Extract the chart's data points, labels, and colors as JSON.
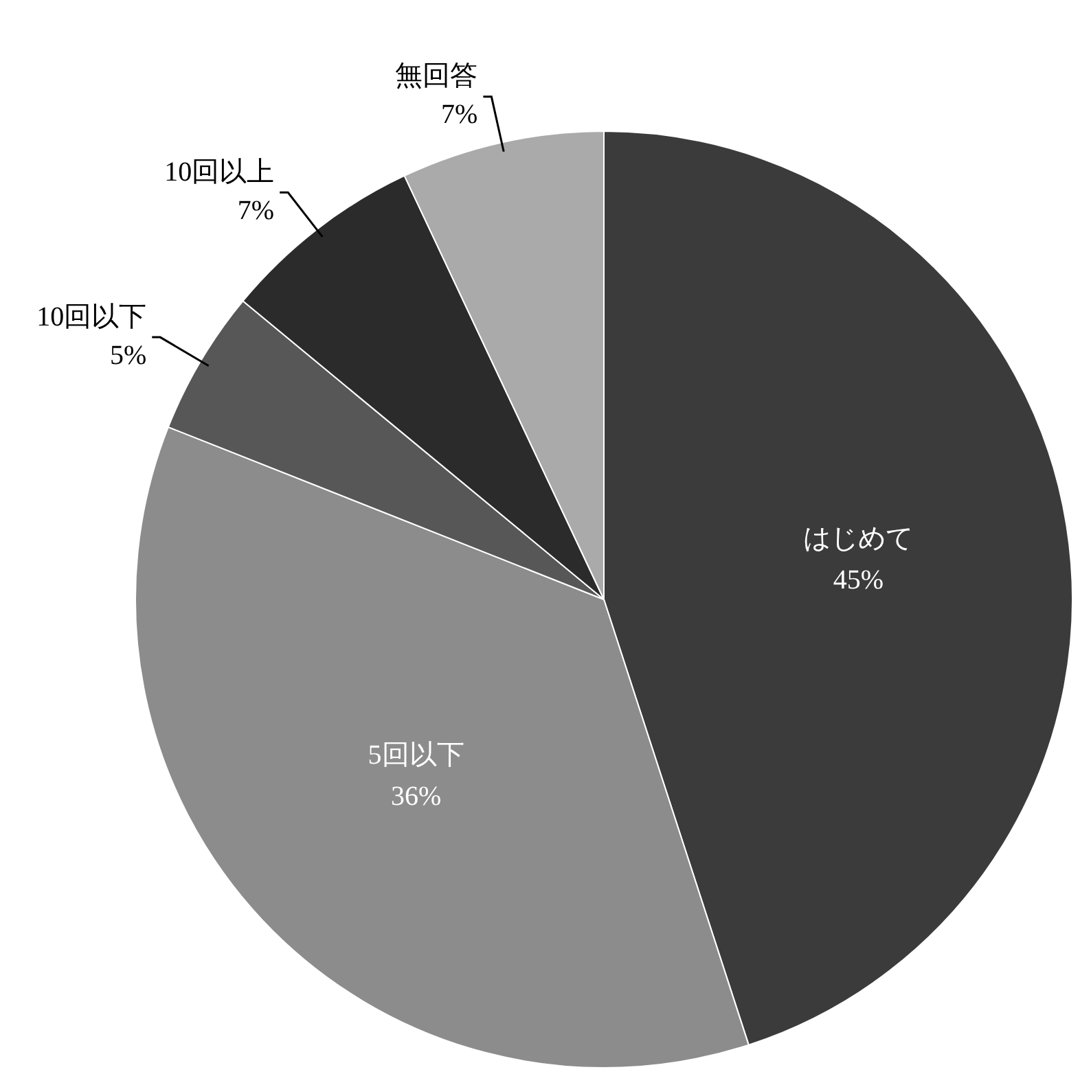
{
  "chart_data": {
    "type": "pie",
    "categories": [
      "はじめて",
      "5回以下",
      "10回以下",
      "10回以上",
      "無回答"
    ],
    "values": [
      45,
      36,
      5,
      7,
      7
    ],
    "colors": [
      "#3b3b3b",
      "#8c8c8c",
      "#575757",
      "#2b2b2b",
      "#aaaaaa"
    ],
    "legend": false,
    "value_labels": [
      "45%",
      "36%",
      "5%",
      "7%",
      "7%"
    ]
  }
}
